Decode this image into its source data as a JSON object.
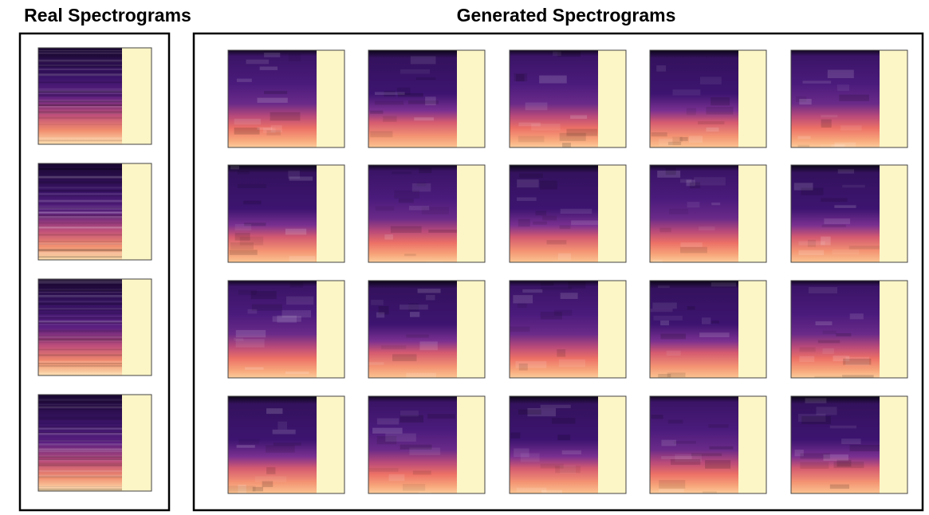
{
  "panels": [
    {
      "title": "Real Spectrograms"
    },
    {
      "title": "Generated Spectrograms"
    }
  ]
}
